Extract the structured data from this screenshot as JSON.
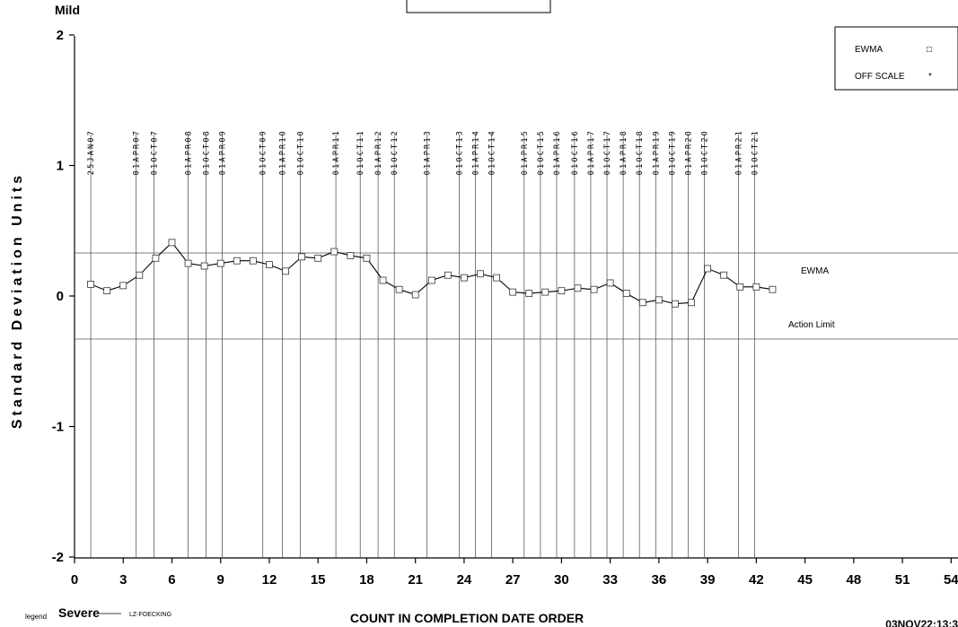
{
  "chart_data": {
    "type": "line",
    "title": "",
    "top_label": "Mild",
    "xlabel": "COUNT IN COMPLETION DATE ORDER",
    "ylabel": "Standard Deviation Units",
    "xlim": [
      0,
      54
    ],
    "ylim": [
      -2,
      2
    ],
    "x_ticks": [
      0,
      3,
      6,
      9,
      12,
      15,
      18,
      21,
      24,
      27,
      30,
      33,
      36,
      39,
      42,
      45,
      48,
      51,
      54
    ],
    "y_ticks": [
      -2,
      -1,
      0,
      1,
      2
    ],
    "grid": false,
    "reference_lines": [
      {
        "name": "EWMA",
        "y": 0.33
      },
      {
        "name": "Action Limit",
        "y": -0.33
      }
    ],
    "date_markers": [
      {
        "x": 1,
        "label": "25JAN07"
      },
      {
        "x": 3.8,
        "label": "01APR07"
      },
      {
        "x": 4.9,
        "label": "01OCT07"
      },
      {
        "x": 7,
        "label": "01APR08"
      },
      {
        "x": 8.1,
        "label": "01OCT08"
      },
      {
        "x": 9.1,
        "label": "01APR09"
      },
      {
        "x": 11.6,
        "label": "01OCT09"
      },
      {
        "x": 12.8,
        "label": "01APR10"
      },
      {
        "x": 13.9,
        "label": "01OCT10"
      },
      {
        "x": 16.1,
        "label": "01APR11"
      },
      {
        "x": 17.6,
        "label": "01OCT11"
      },
      {
        "x": 18.7,
        "label": "01APR12"
      },
      {
        "x": 19.7,
        "label": "01OCT12"
      },
      {
        "x": 21.7,
        "label": "01APR13"
      },
      {
        "x": 23.7,
        "label": "01OCT13"
      },
      {
        "x": 24.7,
        "label": "01APR14"
      },
      {
        "x": 25.7,
        "label": "01OCT14"
      },
      {
        "x": 27.7,
        "label": "01APR15"
      },
      {
        "x": 28.7,
        "label": "01OCT15"
      },
      {
        "x": 29.7,
        "label": "01APR16"
      },
      {
        "x": 30.8,
        "label": "01OCT16"
      },
      {
        "x": 31.8,
        "label": "01APR17"
      },
      {
        "x": 32.8,
        "label": "01OCT17"
      },
      {
        "x": 33.8,
        "label": "01APR18"
      },
      {
        "x": 34.8,
        "label": "01OCT18"
      },
      {
        "x": 35.8,
        "label": "01APR19"
      },
      {
        "x": 36.8,
        "label": "01OCT19"
      },
      {
        "x": 37.8,
        "label": "01APR20"
      },
      {
        "x": 38.8,
        "label": "01OCT20"
      },
      {
        "x": 40.9,
        "label": "01APR21"
      },
      {
        "x": 41.9,
        "label": "01OCT21"
      }
    ],
    "series": [
      {
        "name": "EWMA",
        "x": [
          1,
          2,
          3,
          4,
          5,
          6,
          7,
          8,
          9,
          10,
          11,
          12,
          13,
          14,
          15,
          16,
          17,
          18,
          19,
          20,
          21,
          22,
          23,
          24,
          25,
          26,
          27,
          28,
          29,
          30,
          31,
          32,
          33,
          34,
          35,
          36,
          37,
          38,
          39,
          40,
          41,
          42,
          43
        ],
        "values": [
          0.09,
          0.04,
          0.08,
          0.16,
          0.29,
          0.41,
          0.25,
          0.23,
          0.25,
          0.27,
          0.27,
          0.24,
          0.19,
          0.3,
          0.29,
          0.34,
          0.31,
          0.29,
          0.12,
          0.05,
          0.01,
          0.12,
          0.16,
          0.14,
          0.17,
          0.14,
          0.03,
          0.02,
          0.03,
          0.04,
          0.06,
          0.05,
          0.1,
          0.02,
          -0.05,
          -0.03,
          -0.06,
          -0.05,
          0.21,
          0.16,
          0.07,
          0.07,
          0.05
        ]
      }
    ],
    "legend": {
      "placement": "top-right",
      "entries": [
        {
          "label": "EWMA",
          "symbol": "□"
        },
        {
          "label": "OFF SCALE",
          "symbol": "*"
        }
      ]
    },
    "footer": {
      "legend_word": "legend",
      "severity": "Severe",
      "series_code": "LZ-FOECKING",
      "timestamp": "03NOV22:13:3"
    },
    "colors": {
      "line": "#000000",
      "reference": "#555555",
      "marker_fill": "#ffffff"
    }
  }
}
